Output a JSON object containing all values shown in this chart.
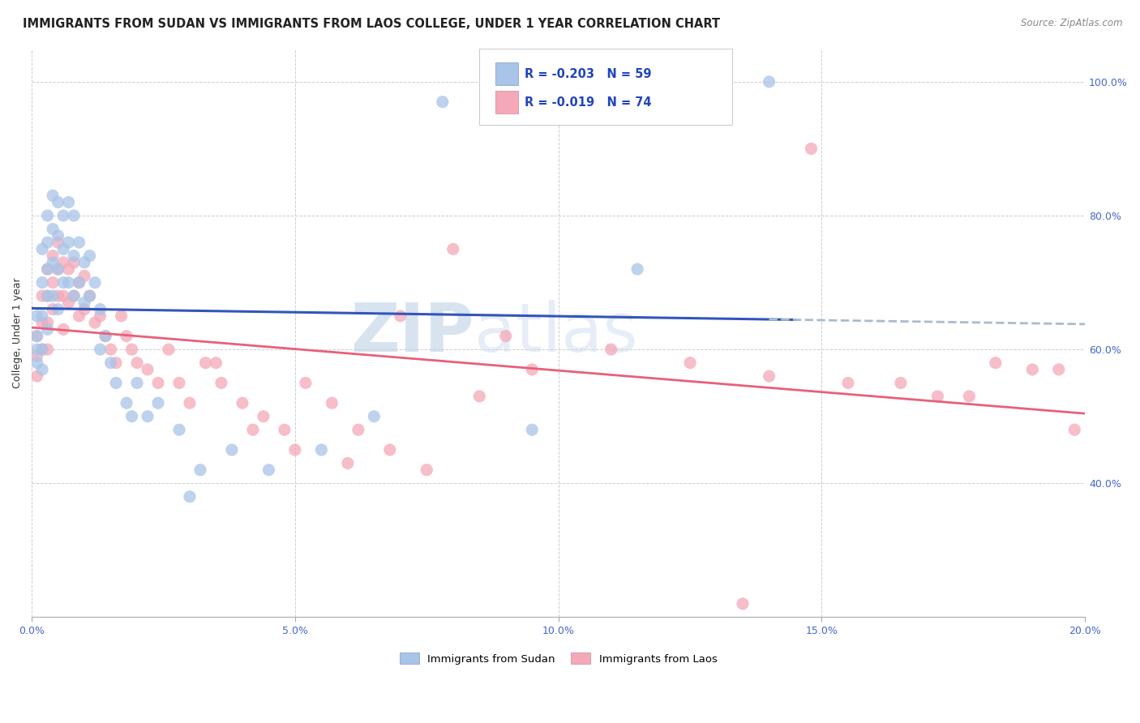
{
  "title": "IMMIGRANTS FROM SUDAN VS IMMIGRANTS FROM LAOS COLLEGE, UNDER 1 YEAR CORRELATION CHART",
  "source": "Source: ZipAtlas.com",
  "ylabel": "College, Under 1 year",
  "xlim": [
    0.0,
    0.2
  ],
  "ylim": [
    0.2,
    1.05
  ],
  "x_ticks": [
    0.0,
    0.05,
    0.1,
    0.15,
    0.2
  ],
  "x_tick_labels": [
    "0.0%",
    "5.0%",
    "10.0%",
    "15.0%",
    "20.0%"
  ],
  "y_ticks": [
    0.4,
    0.6,
    0.8,
    1.0
  ],
  "y_tick_labels": [
    "40.0%",
    "60.0%",
    "80.0%",
    "100.0%"
  ],
  "sudan_color": "#a8c4e8",
  "laos_color": "#f4a8b8",
  "sudan_line_color": "#3355bb",
  "laos_line_color": "#e8607a",
  "dashed_color": "#aabbcc",
  "sudan_R": -0.203,
  "sudan_N": 59,
  "laos_R": -0.019,
  "laos_N": 74,
  "watermark_zip": "ZIP",
  "watermark_atlas": "atlas",
  "legend_sudan_label": "Immigrants from Sudan",
  "legend_laos_label": "Immigrants from Laos",
  "sudan_scatter_x": [
    0.001,
    0.001,
    0.001,
    0.001,
    0.002,
    0.002,
    0.002,
    0.002,
    0.002,
    0.003,
    0.003,
    0.003,
    0.003,
    0.003,
    0.004,
    0.004,
    0.004,
    0.004,
    0.005,
    0.005,
    0.005,
    0.005,
    0.006,
    0.006,
    0.006,
    0.007,
    0.007,
    0.007,
    0.008,
    0.008,
    0.008,
    0.009,
    0.009,
    0.01,
    0.01,
    0.011,
    0.011,
    0.012,
    0.013,
    0.013,
    0.014,
    0.015,
    0.016,
    0.018,
    0.019,
    0.02,
    0.022,
    0.024,
    0.028,
    0.032,
    0.038,
    0.045,
    0.055,
    0.065,
    0.078,
    0.095,
    0.115,
    0.14,
    0.03
  ],
  "sudan_scatter_y": [
    0.65,
    0.62,
    0.6,
    0.58,
    0.75,
    0.7,
    0.65,
    0.6,
    0.57,
    0.8,
    0.76,
    0.72,
    0.68,
    0.63,
    0.83,
    0.78,
    0.73,
    0.68,
    0.82,
    0.77,
    0.72,
    0.66,
    0.8,
    0.75,
    0.7,
    0.82,
    0.76,
    0.7,
    0.8,
    0.74,
    0.68,
    0.76,
    0.7,
    0.73,
    0.67,
    0.74,
    0.68,
    0.7,
    0.66,
    0.6,
    0.62,
    0.58,
    0.55,
    0.52,
    0.5,
    0.55,
    0.5,
    0.52,
    0.48,
    0.42,
    0.45,
    0.42,
    0.45,
    0.5,
    0.97,
    0.48,
    0.72,
    1.0,
    0.38
  ],
  "laos_scatter_x": [
    0.001,
    0.001,
    0.001,
    0.002,
    0.002,
    0.002,
    0.003,
    0.003,
    0.003,
    0.003,
    0.004,
    0.004,
    0.004,
    0.005,
    0.005,
    0.005,
    0.006,
    0.006,
    0.006,
    0.007,
    0.007,
    0.008,
    0.008,
    0.009,
    0.009,
    0.01,
    0.01,
    0.011,
    0.012,
    0.013,
    0.014,
    0.015,
    0.016,
    0.017,
    0.018,
    0.019,
    0.02,
    0.022,
    0.024,
    0.026,
    0.028,
    0.03,
    0.033,
    0.036,
    0.04,
    0.044,
    0.048,
    0.052,
    0.057,
    0.062,
    0.068,
    0.075,
    0.085,
    0.095,
    0.11,
    0.125,
    0.14,
    0.155,
    0.165,
    0.172,
    0.178,
    0.183,
    0.19,
    0.195,
    0.198,
    0.135,
    0.148,
    0.05,
    0.06,
    0.035,
    0.042,
    0.07,
    0.08,
    0.09
  ],
  "laos_scatter_y": [
    0.62,
    0.59,
    0.56,
    0.68,
    0.64,
    0.6,
    0.72,
    0.68,
    0.64,
    0.6,
    0.74,
    0.7,
    0.66,
    0.76,
    0.72,
    0.68,
    0.73,
    0.68,
    0.63,
    0.72,
    0.67,
    0.73,
    0.68,
    0.7,
    0.65,
    0.71,
    0.66,
    0.68,
    0.64,
    0.65,
    0.62,
    0.6,
    0.58,
    0.65,
    0.62,
    0.6,
    0.58,
    0.57,
    0.55,
    0.6,
    0.55,
    0.52,
    0.58,
    0.55,
    0.52,
    0.5,
    0.48,
    0.55,
    0.52,
    0.48,
    0.45,
    0.42,
    0.53,
    0.57,
    0.6,
    0.58,
    0.56,
    0.55,
    0.55,
    0.53,
    0.53,
    0.58,
    0.57,
    0.57,
    0.48,
    0.22,
    0.9,
    0.45,
    0.43,
    0.58,
    0.48,
    0.65,
    0.75,
    0.62
  ],
  "background_color": "#ffffff",
  "grid_color": "#c8c8c8",
  "title_fontsize": 10.5,
  "axis_fontsize": 9,
  "tick_fontsize": 9,
  "tick_color": "#4466cc",
  "rn_color": "#2244bb",
  "legend_r_sudan": "R = -0.203",
  "legend_n_sudan": "N = 59",
  "legend_r_laos": "R = -0.019",
  "legend_n_laos": "N = 74"
}
